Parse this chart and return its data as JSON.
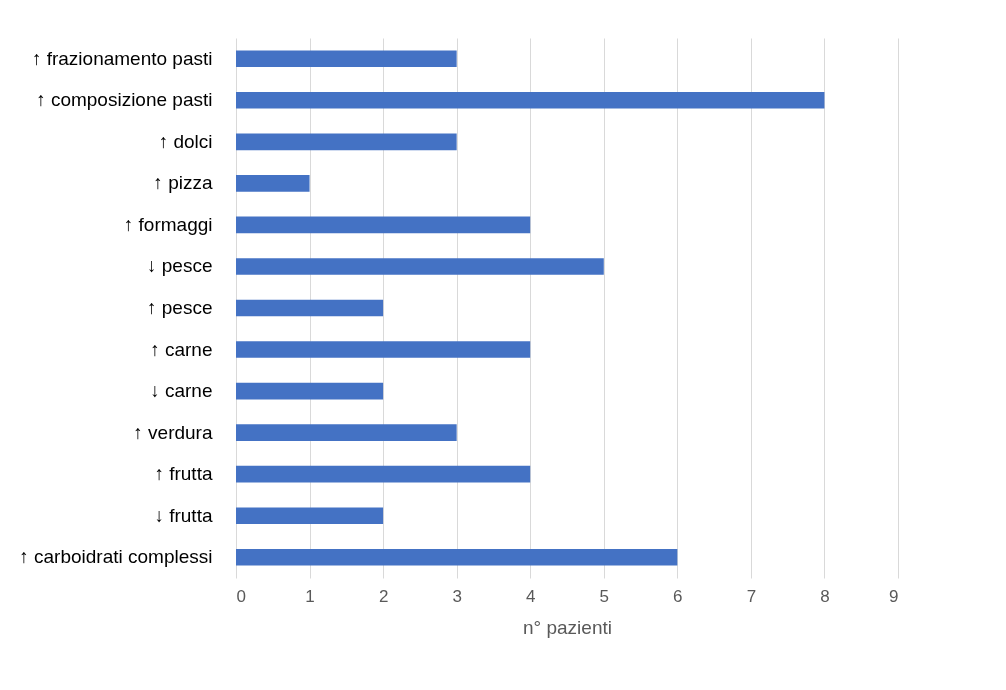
{
  "chart_data": {
    "type": "bar",
    "orientation": "horizontal",
    "xlabel": "n° pazienti",
    "categories": [
      "↑ frazionamento pasti",
      "↑ composizione pasti",
      "↑ dolci",
      "↑ pizza",
      "↑ formaggi",
      "↓ pesce",
      "↑ pesce",
      "↑ carne",
      "↓ carne",
      "↑ verdura",
      "↑ frutta",
      "↓ frutta",
      "↑ carboidrati complessi"
    ],
    "values": [
      3,
      8,
      3,
      1,
      4,
      5,
      2,
      4,
      2,
      3,
      4,
      2,
      6
    ],
    "color": "#4472c4",
    "xlim": [
      0,
      9
    ],
    "xticks": [
      0,
      1,
      2,
      3,
      4,
      5,
      6,
      7,
      8,
      9
    ],
    "grid": "x"
  }
}
